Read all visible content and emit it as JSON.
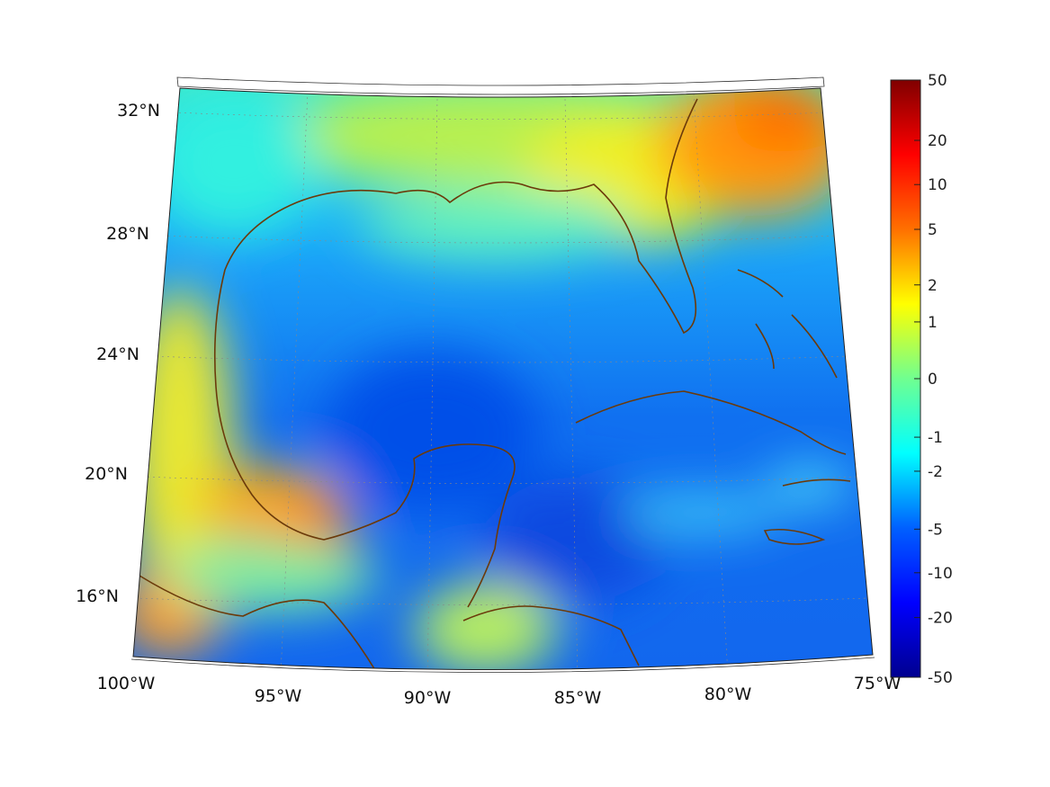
{
  "map": {
    "lon_labels": [
      "100°W",
      "95°W",
      "90°W",
      "85°W",
      "80°W",
      "75°W"
    ],
    "lat_labels": [
      "32°N",
      "28°N",
      "24°N",
      "20°N",
      "16°N"
    ],
    "extent": {
      "lon": [
        -100,
        -75
      ],
      "lat": [
        14,
        33
      ]
    }
  },
  "colorbar": {
    "ticks": [
      "50",
      "20",
      "10",
      "5",
      "2",
      "1",
      "0",
      "-1",
      "-2",
      "-5",
      "-10",
      "-20",
      "-50"
    ],
    "colormap": "jet",
    "colors": [
      "#00008f",
      "#0000ff",
      "#0080ff",
      "#00ffff",
      "#80ff80",
      "#ffff00",
      "#ff8000",
      "#ff0000",
      "#800000"
    ]
  },
  "coastline_color": "#6b3a0a"
}
